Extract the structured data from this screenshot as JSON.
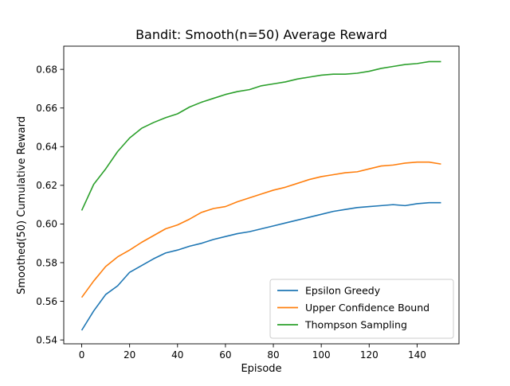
{
  "chart_data": {
    "type": "line",
    "title": "Bandit: Smooth(n=50) Average Reward",
    "xlabel": "Episode",
    "ylabel": "Smoothed(50) Cumulative Reward",
    "xlim": [
      -7.5,
      157.5
    ],
    "ylim": [
      0.538,
      0.692
    ],
    "xticks": [
      0,
      20,
      40,
      60,
      80,
      100,
      120,
      140
    ],
    "yticks": [
      0.54,
      0.56,
      0.58,
      0.6,
      0.62,
      0.64,
      0.66,
      0.68
    ],
    "ytick_labels": [
      "0.54",
      "0.56",
      "0.58",
      "0.60",
      "0.62",
      "0.64",
      "0.66",
      "0.68"
    ],
    "grid": false,
    "legend_position": "lower-right",
    "x": [
      0,
      5,
      10,
      15,
      20,
      25,
      30,
      35,
      40,
      45,
      50,
      55,
      60,
      65,
      70,
      75,
      80,
      85,
      90,
      95,
      100,
      105,
      110,
      115,
      120,
      125,
      130,
      135,
      140,
      145,
      150
    ],
    "series": [
      {
        "name": "Epsilon Greedy",
        "color": "#1f77b4",
        "values": [
          0.545,
          0.555,
          0.5635,
          0.568,
          0.575,
          0.5785,
          0.582,
          0.585,
          0.5865,
          0.5885,
          0.59,
          0.592,
          0.5935,
          0.595,
          0.596,
          0.5975,
          0.599,
          0.6005,
          0.602,
          0.6035,
          0.605,
          0.6065,
          0.6075,
          0.6085,
          0.609,
          0.6095,
          0.61,
          0.6095,
          0.6105,
          0.611,
          0.611
        ]
      },
      {
        "name": "Upper Confidence Bound",
        "color": "#ff7f0e",
        "values": [
          0.562,
          0.5705,
          0.578,
          0.583,
          0.5865,
          0.5905,
          0.594,
          0.5975,
          0.5995,
          0.6025,
          0.606,
          0.608,
          0.609,
          0.6115,
          0.6135,
          0.6155,
          0.6175,
          0.619,
          0.621,
          0.623,
          0.6245,
          0.6255,
          0.6265,
          0.627,
          0.6285,
          0.63,
          0.6305,
          0.6315,
          0.632,
          0.632,
          0.631
        ]
      },
      {
        "name": "Thompson Sampling",
        "color": "#2ca02c",
        "values": [
          0.607,
          0.6205,
          0.6285,
          0.6375,
          0.6445,
          0.6495,
          0.6525,
          0.655,
          0.657,
          0.6605,
          0.663,
          0.665,
          0.667,
          0.6685,
          0.6695,
          0.6715,
          0.6725,
          0.6735,
          0.675,
          0.676,
          0.677,
          0.6775,
          0.6775,
          0.678,
          0.679,
          0.6805,
          0.6815,
          0.6825,
          0.683,
          0.684,
          0.684
        ]
      }
    ]
  }
}
